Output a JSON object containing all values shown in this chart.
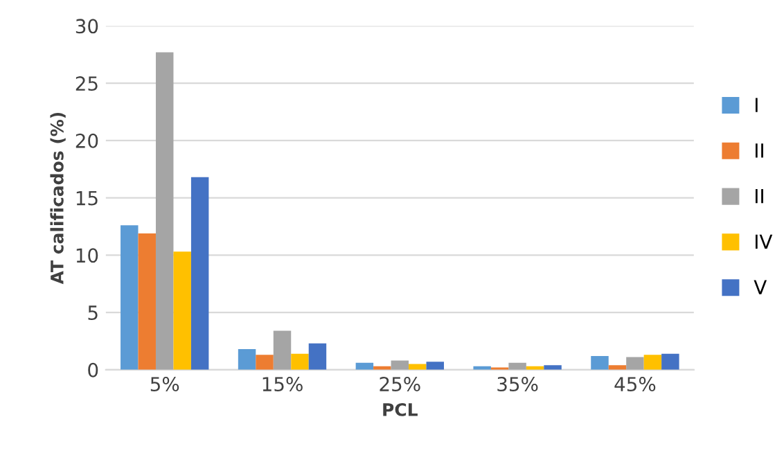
{
  "chart_data": {
    "type": "bar",
    "xlabel": "PCL",
    "ylabel": "AT calificados (%)",
    "categories": [
      "5%",
      "15%",
      "25%",
      "35%",
      "45%"
    ],
    "series": [
      {
        "name": "I",
        "color": "#5b9bd5",
        "values": [
          12.6,
          1.8,
          0.6,
          0.3,
          1.2
        ]
      },
      {
        "name": "II",
        "color": "#ed7d31",
        "values": [
          11.9,
          1.3,
          0.3,
          0.2,
          0.4
        ]
      },
      {
        "name": "II",
        "color": "#a5a5a5",
        "values": [
          27.7,
          3.4,
          0.8,
          0.6,
          1.1
        ]
      },
      {
        "name": "IV",
        "color": "#ffc000",
        "values": [
          10.3,
          1.4,
          0.5,
          0.3,
          1.3
        ]
      },
      {
        "name": "V",
        "color": "#4472c4",
        "values": [
          16.8,
          2.3,
          0.7,
          0.4,
          1.4
        ]
      }
    ],
    "ylim": [
      0,
      30
    ],
    "yticks": [
      0,
      5,
      10,
      15,
      20,
      25,
      30
    ],
    "grid": "y",
    "legend": "right"
  }
}
